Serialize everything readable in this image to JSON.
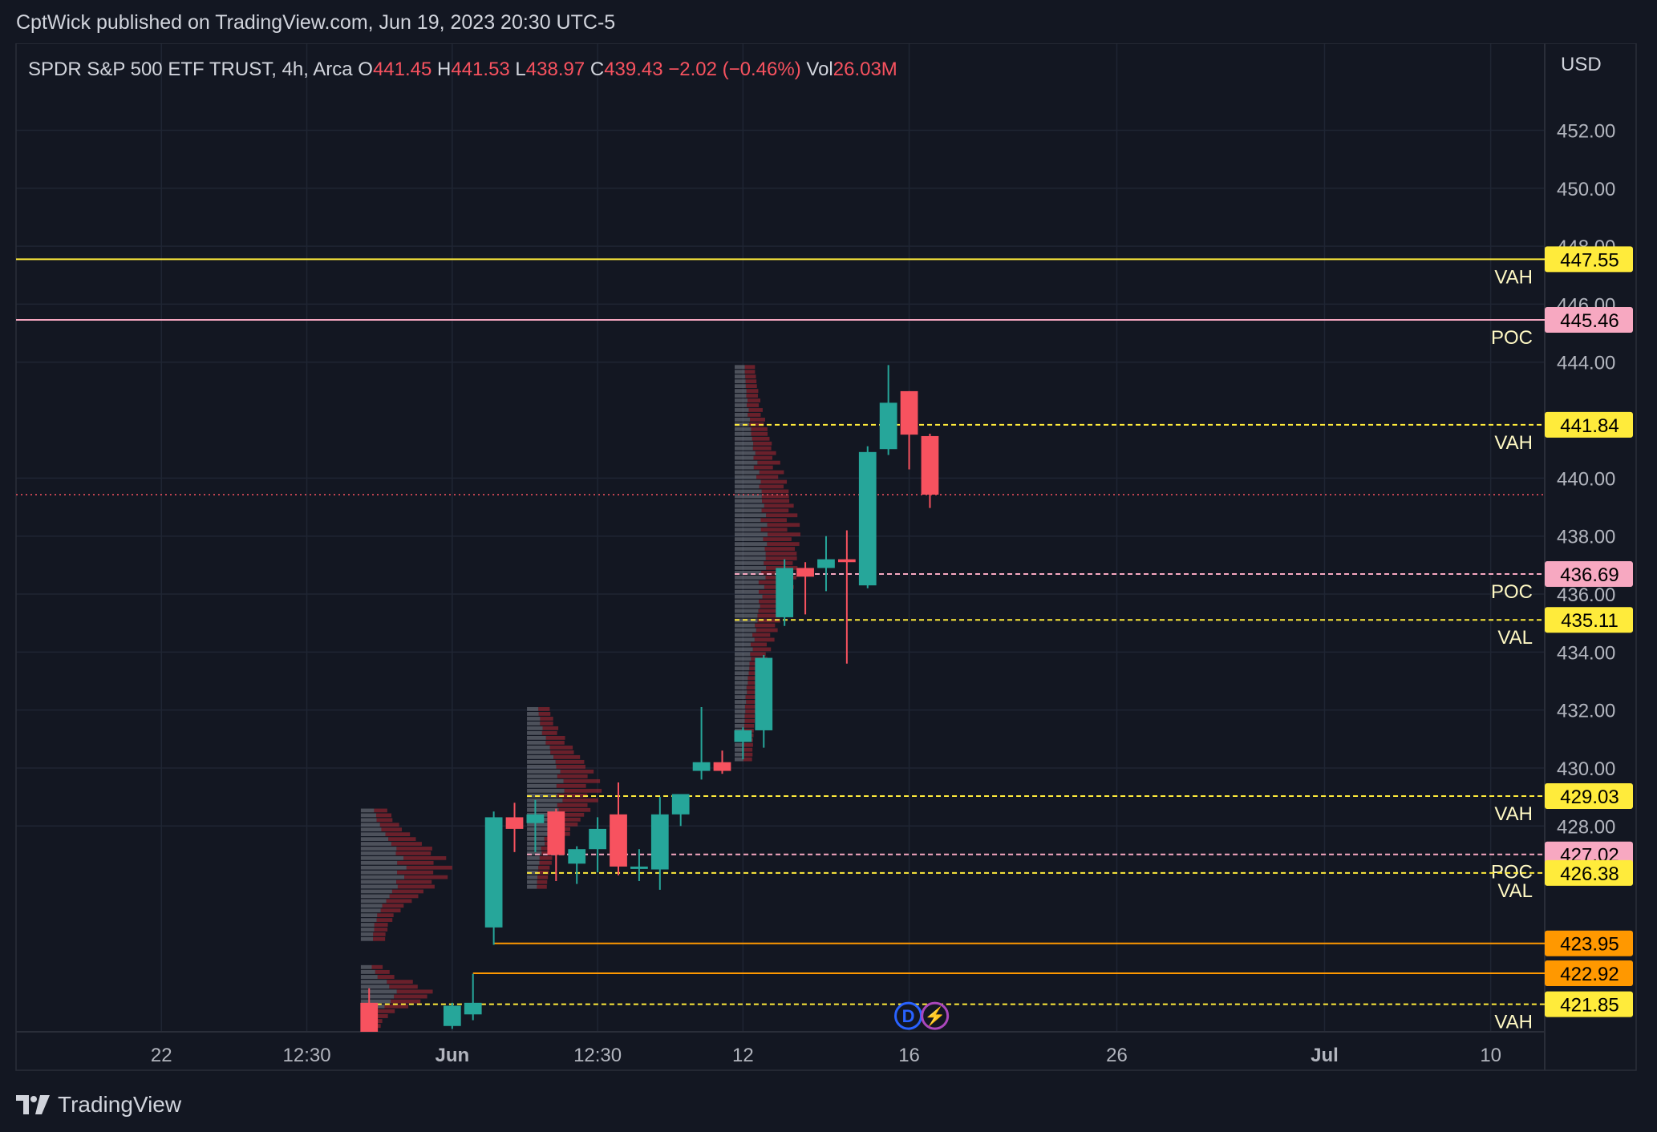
{
  "header": {
    "published": "CptWick published on TradingView.com, Jun 19, 2023 20:30 UTC-5"
  },
  "legend": {
    "symbol": "SPDR S&P 500 ETF TRUST, 4h, Arca",
    "o_label": "O",
    "o_value": "441.45",
    "h_label": "H",
    "h_value": "441.53",
    "l_label": "L",
    "l_value": "438.97",
    "c_label": "C",
    "c_value": "439.43",
    "change": "−2.02 (−0.46%)",
    "vol_label": "Vol",
    "vol_value": "26.03M"
  },
  "footer": {
    "brand": "TradingView",
    "logo_icon": "tradingview-logo-icon"
  },
  "colors": {
    "background": "#131722",
    "grid": "#1f2533",
    "text": "#d1d4dc",
    "up": "#26a69a",
    "down": "#f7525f",
    "yellow": "#ffeb3b",
    "pink": "#f7a8c1",
    "orange": "#ff9800",
    "last_price": "#f7525f"
  },
  "chart_data": {
    "type": "candlestick",
    "currency": "USD",
    "ylim": [
      420.9,
      455.0
    ],
    "grid": true,
    "y_ticks": [
      "452.00",
      "450.00",
      "448.00",
      "446.00",
      "444.00",
      "440.00",
      "438.00",
      "436.00",
      "434.00",
      "432.00",
      "430.00",
      "428.00"
    ],
    "x_ticks": [
      {
        "label": "22",
        "x": 0
      },
      {
        "label": "12:30",
        "x": 3.5
      },
      {
        "label": "Jun",
        "x": 7,
        "bold": true
      },
      {
        "label": "12:30",
        "x": 10.5
      },
      {
        "label": "12",
        "x": 14
      },
      {
        "label": "16",
        "x": 18
      },
      {
        "label": "26",
        "x": 23
      },
      {
        "label": "Jul",
        "x": 28,
        "bold": true
      },
      {
        "label": "10",
        "x": 32
      }
    ],
    "x_range": [
      -3.5,
      33.3
    ],
    "candles": [
      {
        "x": 5.0,
        "o": 421.9,
        "h": 422.4,
        "l": 421.0,
        "c": 420.9
      },
      {
        "x": 7.0,
        "o": 421.1,
        "h": 421.9,
        "l": 421.0,
        "c": 421.8
      },
      {
        "x": 7.5,
        "o": 421.5,
        "h": 422.9,
        "l": 421.3,
        "c": 421.9
      },
      {
        "x": 8.0,
        "o": 424.5,
        "h": 428.5,
        "l": 423.9,
        "c": 428.3
      },
      {
        "x": 8.5,
        "o": 428.3,
        "h": 428.8,
        "l": 427.1,
        "c": 427.9
      },
      {
        "x": 9.0,
        "o": 428.1,
        "h": 428.9,
        "l": 427.1,
        "c": 428.4
      },
      {
        "x": 9.5,
        "o": 428.5,
        "h": 428.6,
        "l": 426.1,
        "c": 427.0
      },
      {
        "x": 10.0,
        "o": 426.7,
        "h": 427.3,
        "l": 426.0,
        "c": 427.2
      },
      {
        "x": 10.5,
        "o": 427.2,
        "h": 428.3,
        "l": 426.4,
        "c": 427.9
      },
      {
        "x": 11.0,
        "o": 428.4,
        "h": 429.5,
        "l": 426.3,
        "c": 426.6
      },
      {
        "x": 11.5,
        "o": 426.6,
        "h": 427.2,
        "l": 426.1,
        "c": 426.6
      },
      {
        "x": 12.0,
        "o": 426.5,
        "h": 429.0,
        "l": 425.8,
        "c": 428.4
      },
      {
        "x": 12.5,
        "o": 428.4,
        "h": 429.1,
        "l": 428.0,
        "c": 429.1
      },
      {
        "x": 13.0,
        "o": 429.9,
        "h": 432.1,
        "l": 429.6,
        "c": 430.2
      },
      {
        "x": 13.5,
        "o": 430.2,
        "h": 430.6,
        "l": 429.8,
        "c": 429.9
      },
      {
        "x": 14.0,
        "o": 430.9,
        "h": 431.4,
        "l": 430.3,
        "c": 431.3
      },
      {
        "x": 14.5,
        "o": 431.3,
        "h": 433.9,
        "l": 430.7,
        "c": 433.8
      },
      {
        "x": 15.0,
        "o": 435.2,
        "h": 437.2,
        "l": 434.9,
        "c": 436.9
      },
      {
        "x": 15.5,
        "o": 436.9,
        "h": 437.1,
        "l": 435.3,
        "c": 436.6
      },
      {
        "x": 16.0,
        "o": 436.9,
        "h": 438.0,
        "l": 436.1,
        "c": 437.2
      },
      {
        "x": 16.5,
        "o": 437.2,
        "h": 438.2,
        "l": 433.6,
        "c": 437.1
      },
      {
        "x": 17.0,
        "o": 436.3,
        "h": 441.1,
        "l": 436.2,
        "c": 440.9
      },
      {
        "x": 17.5,
        "o": 441.0,
        "h": 443.9,
        "l": 440.8,
        "c": 442.6
      },
      {
        "x": 18.0,
        "o": 443.0,
        "h": 443.0,
        "l": 440.3,
        "c": 441.5
      },
      {
        "x": 18.5,
        "o": 441.45,
        "h": 441.53,
        "l": 438.97,
        "c": 439.43
      }
    ],
    "levels": [
      {
        "price": 447.55,
        "label": "VAH",
        "color": "yellow",
        "style": "solid",
        "x_from": -3.5
      },
      {
        "price": 445.46,
        "label": "POC",
        "color": "pink",
        "style": "solid",
        "x_from": -3.5
      },
      {
        "price": 441.84,
        "label": "VAH",
        "color": "yellow",
        "style": "dashed",
        "x_from": 13.8
      },
      {
        "price": 436.69,
        "label": "POC",
        "color": "pink",
        "style": "dashed",
        "x_from": 13.8
      },
      {
        "price": 435.11,
        "label": "VAL",
        "color": "yellow",
        "style": "dashed",
        "x_from": 13.8
      },
      {
        "price": 429.03,
        "label": "VAH",
        "color": "yellow",
        "style": "dashed",
        "x_from": 8.8
      },
      {
        "price": 427.02,
        "label": "POC",
        "color": "pink",
        "style": "dashed",
        "x_from": 8.8
      },
      {
        "price": 426.38,
        "label": "VAL",
        "color": "yellow",
        "style": "dashed",
        "x_from": 8.8
      },
      {
        "price": 423.95,
        "label": "",
        "color": "orange",
        "style": "solid",
        "x_from": 8.0
      },
      {
        "price": 422.92,
        "label": "",
        "color": "orange",
        "style": "solid",
        "x_from": 7.5
      },
      {
        "price": 421.85,
        "label": "VAH",
        "color": "yellow",
        "style": "dashed",
        "x_from": 4.8
      }
    ],
    "last_price": 439.43,
    "volume_profiles": [
      {
        "x_start": 4.8,
        "x_width": 2.2,
        "y_top": 428.6,
        "y_bottom": 424.0
      },
      {
        "x_start": 8.8,
        "x_width": 1.8,
        "y_top": 432.1,
        "y_bottom": 425.8
      },
      {
        "x_start": 13.8,
        "x_width": 1.6,
        "y_top": 443.9,
        "y_bottom": 430.2
      },
      {
        "x_start": 4.8,
        "x_width": 1.8,
        "y_top": 423.2,
        "y_bottom": 421.0
      }
    ],
    "markers": [
      {
        "x": 17.98,
        "price": 421.45,
        "label": "D",
        "icon": "dividend-icon"
      },
      {
        "x": 18.62,
        "price": 421.45,
        "label": "⚡",
        "icon": "lightning-icon"
      }
    ]
  }
}
